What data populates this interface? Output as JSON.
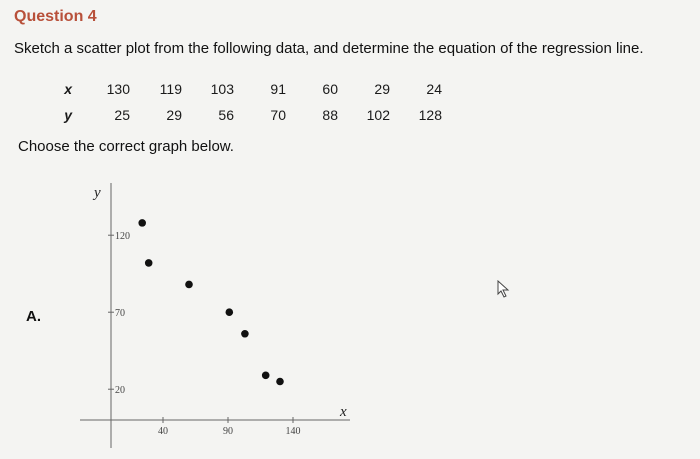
{
  "question": {
    "title": "Question 4",
    "prompt": "Sketch a scatter plot from the following data, and determine the equation of the regression line.",
    "table": {
      "x_label": "x",
      "y_label": "y",
      "x_values": [
        "130",
        "119",
        "103",
        "91",
        "60",
        "29",
        "24"
      ],
      "y_values": [
        "25",
        "29",
        "56",
        "70",
        "88",
        "102",
        "128"
      ]
    },
    "choose_text": "Choose the correct graph below.",
    "option_label": "A."
  },
  "chart_data": {
    "type": "scatter",
    "xlabel": "x",
    "ylabel": "y",
    "xlim": [
      0,
      160
    ],
    "ylim": [
      0,
      150
    ],
    "x_ticks": [
      40,
      90,
      140
    ],
    "y_ticks": [
      20,
      70,
      120
    ],
    "x_tick_labels": [
      "40",
      "90",
      "140"
    ],
    "y_tick_labels": [
      "20",
      "70",
      "120"
    ],
    "points": [
      {
        "x": 24,
        "y": 128
      },
      {
        "x": 29,
        "y": 102
      },
      {
        "x": 60,
        "y": 88
      },
      {
        "x": 91,
        "y": 70
      },
      {
        "x": 103,
        "y": 56
      },
      {
        "x": 119,
        "y": 29
      },
      {
        "x": 130,
        "y": 25
      }
    ],
    "point_color": "#111111",
    "grid": false
  }
}
